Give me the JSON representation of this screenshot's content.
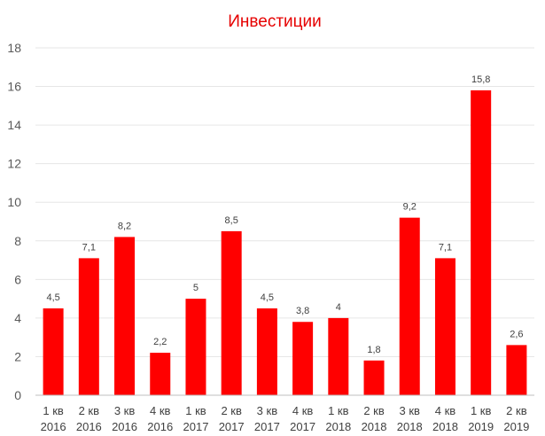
{
  "chart_data": {
    "type": "bar",
    "title": "Инвестиции",
    "xlabel": "",
    "ylabel": "",
    "categories": [
      [
        "1 кв",
        "2016"
      ],
      [
        "2 кв",
        "2016"
      ],
      [
        "3 кв",
        "2016"
      ],
      [
        "4 кв",
        "2016"
      ],
      [
        "1 кв",
        "2017"
      ],
      [
        "2 кв",
        "2017"
      ],
      [
        "3 кв",
        "2017"
      ],
      [
        "4 кв",
        "2017"
      ],
      [
        "1 кв",
        "2018"
      ],
      [
        "2 кв",
        "2018"
      ],
      [
        "3 кв",
        "2018"
      ],
      [
        "4 кв",
        "2018"
      ],
      [
        "1 кв",
        "2019"
      ],
      [
        "2 кв",
        "2019"
      ]
    ],
    "values": [
      4.5,
      7.1,
      8.2,
      2.2,
      5,
      8.5,
      4.5,
      3.8,
      4,
      1.8,
      9.2,
      7.1,
      15.8,
      2.6
    ],
    "data_labels": [
      "4,5",
      "7,1",
      "8,2",
      "2,2",
      "5",
      "8,5",
      "4,5",
      "3,8",
      "4",
      "1,8",
      "9,2",
      "7,1",
      "15,8",
      "2,6"
    ],
    "ylim": [
      0,
      18
    ],
    "yticks": [
      0,
      2,
      4,
      6,
      8,
      10,
      12,
      14,
      16,
      18
    ],
    "grid": true,
    "legend": "none",
    "colors": {
      "bar": "#ff0000",
      "title": "#e60000",
      "grid": "#e6e6e6",
      "axis": "#bfbfbf"
    }
  }
}
